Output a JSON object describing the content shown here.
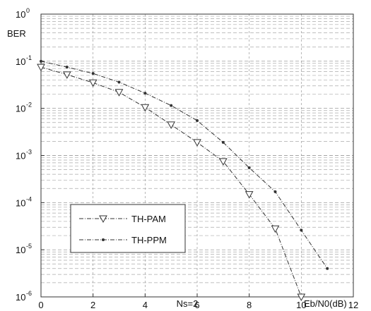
{
  "chart_data": {
    "type": "line",
    "title": "",
    "xlabel": "Eb/N0(dB)",
    "ylabel": "BER",
    "caption": "Ns=2",
    "x_ticks": [
      "0",
      "2",
      "4",
      "6",
      "8",
      "10",
      "12"
    ],
    "y_ticks": [
      {
        "base": "10",
        "exp": "0"
      },
      {
        "base": "10",
        "exp": "-1"
      },
      {
        "base": "10",
        "exp": "-2"
      },
      {
        "base": "10",
        "exp": "-3"
      },
      {
        "base": "10",
        "exp": "-4"
      },
      {
        "base": "10",
        "exp": "-5"
      },
      {
        "base": "10",
        "exp": "-6"
      }
    ],
    "xlim": [
      0,
      12
    ],
    "ylim": [
      1e-06,
      1
    ],
    "y_scale": "log",
    "grid": true,
    "legend_position": "lower-left",
    "series": [
      {
        "name": "TH-PAM",
        "marker": "triangle-down",
        "line_style": "dash-dot",
        "color": "#333333",
        "x": [
          0,
          1,
          2,
          3,
          4,
          5,
          6,
          7,
          8,
          9,
          10
        ],
        "y": [
          0.075,
          0.052,
          0.035,
          0.022,
          0.0105,
          0.0045,
          0.0019,
          0.00075,
          0.00015,
          2.8e-05,
          1e-06
        ]
      },
      {
        "name": "TH-PPM",
        "marker": "dot",
        "line_style": "dash-dot",
        "color": "#333333",
        "x": [
          0,
          1,
          2,
          3,
          4,
          5,
          6,
          7,
          8,
          9,
          10,
          11
        ],
        "y": [
          0.1,
          0.075,
          0.055,
          0.036,
          0.021,
          0.0115,
          0.0055,
          0.0019,
          0.00055,
          0.00017,
          2.6e-05,
          4e-06
        ]
      }
    ]
  }
}
